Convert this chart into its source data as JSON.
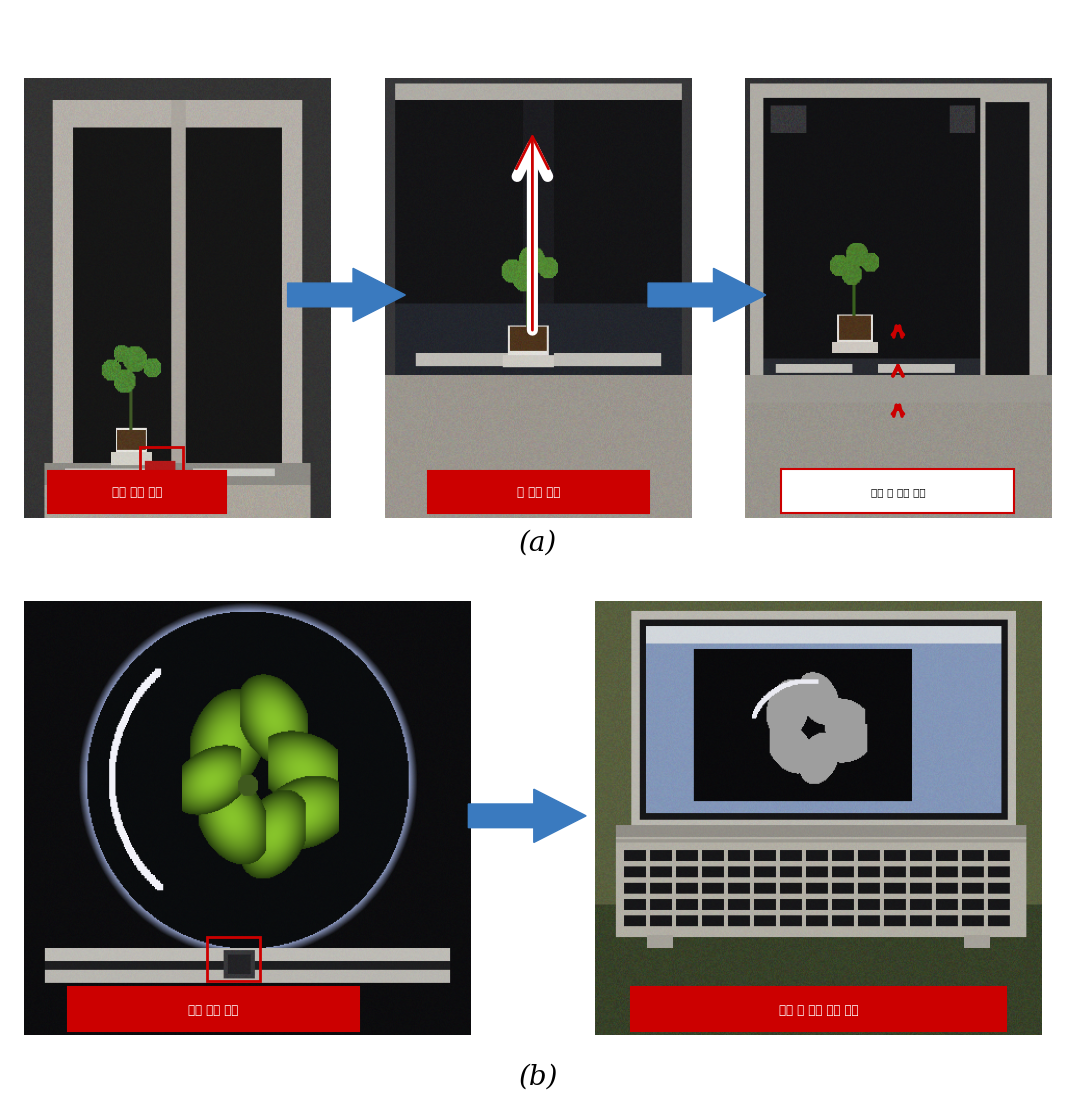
{
  "background_color": "#ffffff",
  "figure_width": 10.76,
  "figure_height": 11.13,
  "label_a": "(a)",
  "label_b": "(b)",
  "label_a_fontsize": 20,
  "label_b_fontsize": 20,
  "arrow_color": "#3a7abf",
  "red_color": "#cc0000",
  "white_color": "#ffffff",
  "top_row_labels": [
    "이송 감지 센서",
    "문 자동 개폘",
    "개폘 후 자동 이송"
  ],
  "bottom_row_labels": [
    "이송 감지 센서",
    "정지 후 형광 영상 측정"
  ]
}
